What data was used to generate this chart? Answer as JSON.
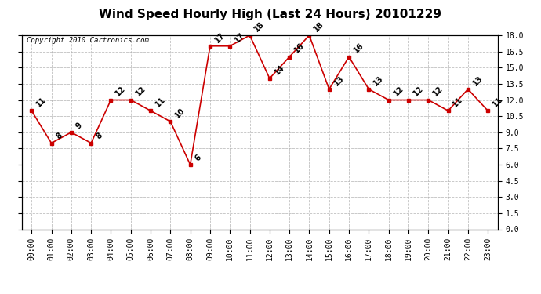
{
  "title": "Wind Speed Hourly High (Last 24 Hours) 20101229",
  "copyright_text": "Copyright 2010 Cartronics.com",
  "hours": [
    "00:00",
    "01:00",
    "02:00",
    "03:00",
    "04:00",
    "05:00",
    "06:00",
    "07:00",
    "08:00",
    "09:00",
    "10:00",
    "11:00",
    "12:00",
    "13:00",
    "14:00",
    "15:00",
    "16:00",
    "17:00",
    "18:00",
    "19:00",
    "20:00",
    "21:00",
    "22:00",
    "23:00"
  ],
  "values": [
    11,
    8,
    9,
    8,
    12,
    12,
    11,
    10,
    6,
    17,
    17,
    18,
    14,
    16,
    18,
    13,
    16,
    13,
    12,
    12,
    12,
    11,
    13,
    11
  ],
  "ylim_min": 0.0,
  "ylim_max": 18.0,
  "yticks": [
    0.0,
    1.5,
    3.0,
    4.5,
    6.0,
    7.5,
    9.0,
    10.5,
    12.0,
    13.5,
    15.0,
    16.5,
    18.0
  ],
  "line_color": "#cc0000",
  "marker_color": "#cc0000",
  "bg_color": "#ffffff",
  "grid_color": "#b0b0b0",
  "title_fontsize": 11,
  "tick_fontsize": 7,
  "annotation_fontsize": 7,
  "copyright_fontsize": 6.5
}
